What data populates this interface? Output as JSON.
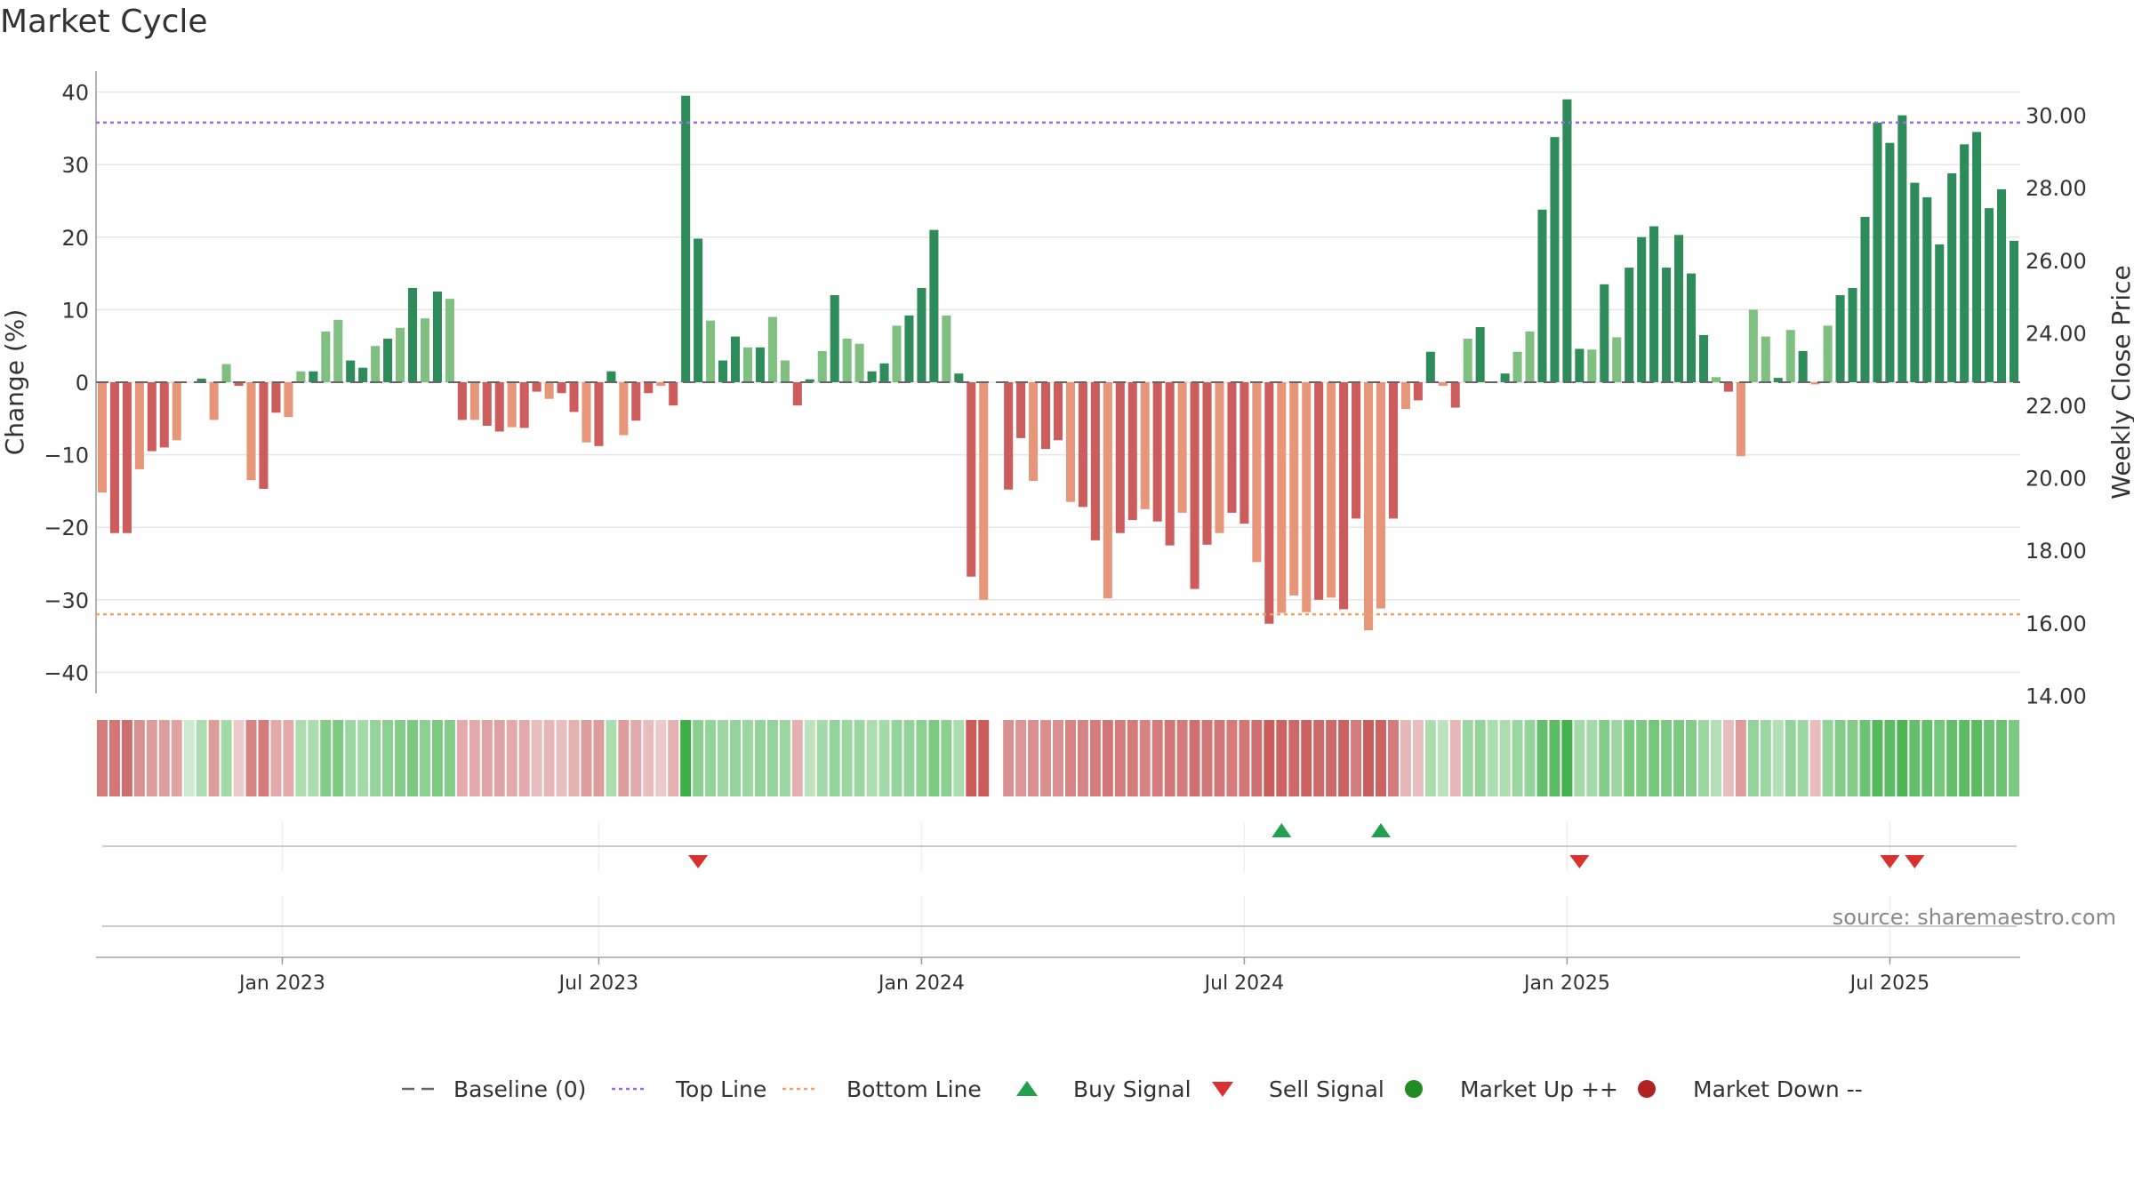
{
  "title": "Market Cycle",
  "source": "source: sharemaestro.com",
  "colors": {
    "top_line": "#9b6bd6",
    "bottom_line": "#f0a060",
    "buy": "#22a050",
    "sell": "#d93030",
    "market_up": "#228b22",
    "market_down": "#b22222"
  },
  "chart_data": {
    "type": "bar",
    "ylabel_left": "Change (%)",
    "ylabel_right": "Weekly Close Price",
    "ylim": [
      -43,
      43
    ],
    "yticks_left": [
      40,
      30,
      20,
      10,
      0,
      -10,
      -20,
      -30,
      -40
    ],
    "yticks_left_labels": [
      "40",
      "30",
      "20",
      "10",
      "0",
      "−10",
      "−20",
      "−30",
      "−40"
    ],
    "yticks_right_labels": [
      "30.00",
      "28.00",
      "26.00",
      "24.00",
      "22.00",
      "20.00",
      "18.00",
      "16.00",
      "14.00"
    ],
    "top_line": 35.8,
    "bottom_line": -32,
    "x_tick_labels": [
      "Jan 2023",
      "Jul 2023",
      "Jan 2024",
      "Jul 2024",
      "Jan 2025",
      "Jul 2025"
    ],
    "x_tick_weeks": [
      15.0,
      40.5,
      66.5,
      92.5,
      118.5,
      144.5
    ],
    "values": [
      -15.2,
      -20.8,
      -20.8,
      -12,
      -9.5,
      -9,
      -8,
      0,
      0.5,
      -5.2,
      2.5,
      -0.5,
      -13.5,
      -14.7,
      -4.2,
      -4.8,
      1.5,
      1.5,
      7,
      8.6,
      3,
      2,
      5,
      6,
      7.5,
      13,
      8.8,
      12.5,
      11.5,
      -5.2,
      -5.2,
      -6,
      -6.8,
      -6.2,
      -6.3,
      -1.3,
      -2.3,
      -1.5,
      -4.1,
      -8.3,
      -8.8,
      1.5,
      -7.3,
      -5.3,
      -1.5,
      -0.5,
      -3.2,
      39.5,
      19.8,
      8.5,
      3,
      6.3,
      4.8,
      4.8,
      9,
      3,
      -3.2,
      0.4,
      4.3,
      12,
      6,
      5.3,
      1.5,
      2.6,
      7.8,
      9.2,
      13,
      21,
      9.2,
      1.2,
      -26.8,
      -30,
      0,
      -14.8,
      -7.7,
      -13.6,
      -9.2,
      -8,
      -16.5,
      -17.2,
      -21.8,
      -29.8,
      -20.8,
      -19,
      -17.5,
      -19.2,
      -22.5,
      -18,
      -28.5,
      -22.4,
      -20.8,
      -18,
      -19.5,
      -24.8,
      -33.3,
      -31.8,
      -29.4,
      -31.7,
      -30,
      -29.7,
      -31.3,
      -18.8,
      -34.2,
      -31.2,
      -18.8,
      -3.7,
      -2.5,
      4.2,
      -0.5,
      -3.5,
      6,
      7.6,
      0,
      1.2,
      4.2,
      7,
      23.8,
      33.8,
      39,
      4.6,
      4.5,
      13.5,
      6.2,
      15.8,
      20,
      21.5,
      15.8,
      20.3,
      15,
      6.5,
      0.7,
      -1.3,
      -10.2,
      10,
      6.3,
      0.6,
      7.2,
      4.3,
      -0.3,
      7.8,
      12,
      13,
      22.8,
      35.8,
      33,
      36.8,
      27.5,
      25.5,
      19,
      28.8,
      32.8,
      34.5,
      24,
      26.6,
      19.5
    ],
    "heat_strip": [
      -0.7,
      -0.75,
      -0.8,
      -0.55,
      -0.45,
      -0.45,
      -0.4,
      0.1,
      0.3,
      -0.45,
      0.35,
      -0.1,
      -0.65,
      -0.7,
      -0.35,
      -0.35,
      0.3,
      0.3,
      0.55,
      0.6,
      0.4,
      0.35,
      0.45,
      0.5,
      0.55,
      0.6,
      0.5,
      0.6,
      0.55,
      -0.35,
      -0.35,
      -0.4,
      -0.4,
      -0.35,
      -0.35,
      -0.2,
      -0.25,
      -0.2,
      -0.3,
      -0.45,
      -0.45,
      0.3,
      -0.45,
      -0.35,
      -0.2,
      -0.1,
      -0.3,
      1,
      0.5,
      0.45,
      0.4,
      0.45,
      0.4,
      0.45,
      0.45,
      0.4,
      -0.3,
      0.2,
      0.35,
      0.45,
      0.4,
      0.4,
      0.3,
      0.35,
      0.45,
      0.45,
      0.5,
      0.6,
      0.5,
      0.3,
      -0.95,
      -0.95,
      0,
      -0.55,
      -0.5,
      -0.55,
      -0.55,
      -0.55,
      -0.65,
      -0.65,
      -0.7,
      -0.75,
      -0.7,
      -0.7,
      -0.65,
      -0.7,
      -0.75,
      -0.7,
      -0.8,
      -0.75,
      -0.75,
      -0.7,
      -0.75,
      -0.8,
      -0.95,
      -0.9,
      -0.85,
      -0.9,
      -0.85,
      -0.85,
      -0.9,
      -0.7,
      -0.95,
      -0.9,
      -0.7,
      -0.25,
      -0.2,
      0.3,
      0.2,
      -0.25,
      0.4,
      0.45,
      0.3,
      0.3,
      0.4,
      0.45,
      0.75,
      0.8,
      0.95,
      0.35,
      0.35,
      0.55,
      0.4,
      0.6,
      0.6,
      0.65,
      0.6,
      0.6,
      0.55,
      0.4,
      0.25,
      -0.2,
      -0.45,
      0.45,
      0.4,
      0.25,
      0.45,
      0.4,
      -0.2,
      0.45,
      0.55,
      0.55,
      0.7,
      0.85,
      0.8,
      0.9,
      0.75,
      0.75,
      0.65,
      0.75,
      0.8,
      0.8,
      0.7,
      0.7,
      0.6
    ],
    "buy_signals_week": [
      95,
      103
    ],
    "sell_signals_week": [
      48,
      119,
      144,
      146
    ],
    "legend": [
      {
        "label": "Baseline (0)",
        "symbol": "dash",
        "color": "#666666"
      },
      {
        "label": "Top Line",
        "symbol": "dotted",
        "color": "#9b6bd6"
      },
      {
        "label": "Bottom Line",
        "symbol": "dotted",
        "color": "#f0a060"
      },
      {
        "label": "Buy Signal",
        "symbol": "triangle-up",
        "color": "#22a050"
      },
      {
        "label": "Sell Signal",
        "symbol": "triangle-down",
        "color": "#d93030"
      },
      {
        "label": "Market Up ++",
        "symbol": "circle",
        "color": "#228b22"
      },
      {
        "label": "Market Down --",
        "symbol": "circle",
        "color": "#b22222"
      }
    ]
  }
}
